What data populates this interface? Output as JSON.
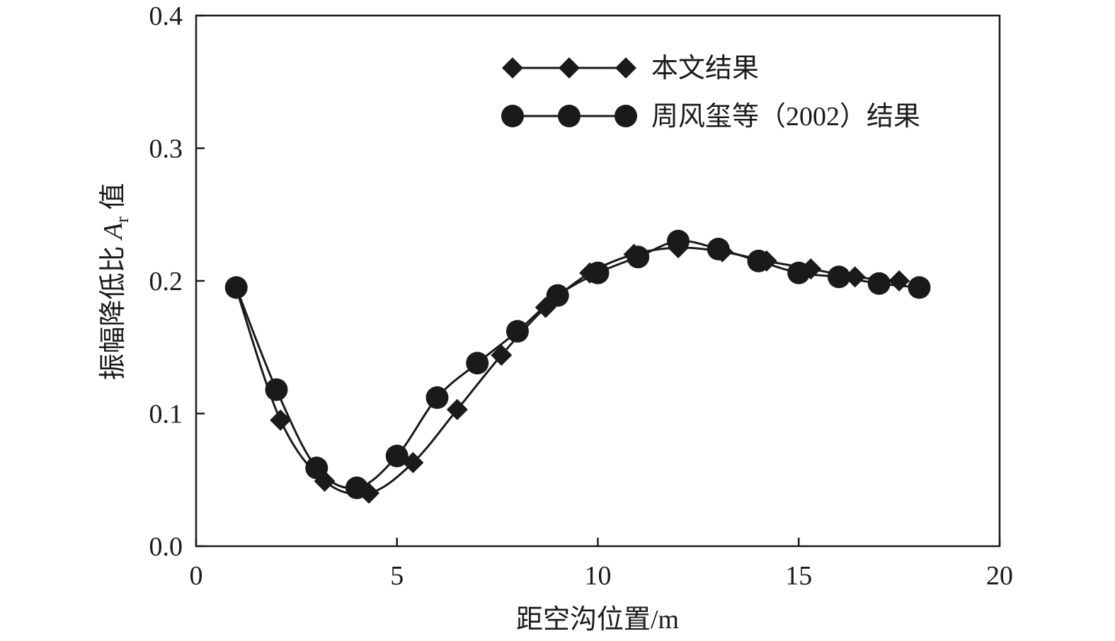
{
  "chart_data": {
    "type": "line",
    "title": "",
    "xlabel": "距空沟位置/m",
    "ylabel": "振幅降低比 Ar 值",
    "ylabel_parts": {
      "prefix": "振幅降低比 ",
      "symbol": "A",
      "subscript": "r",
      "suffix": " 值"
    },
    "xlim": [
      0,
      20
    ],
    "ylim": [
      0.0,
      0.4
    ],
    "xticks": [
      0,
      5,
      10,
      15,
      20
    ],
    "xtick_labels": [
      "0",
      "5",
      "10",
      "15",
      "20"
    ],
    "yticks": [
      0.0,
      0.1,
      0.2,
      0.3,
      0.4
    ],
    "ytick_labels": [
      "0.0",
      "0.1",
      "0.2",
      "0.3",
      "0.4"
    ],
    "grid": false,
    "legend_position": "top-right",
    "series": [
      {
        "name": "本文结果",
        "marker": "diamond",
        "color": "#1a1a1a",
        "x": [
          1.0,
          2.1,
          3.2,
          4.3,
          5.4,
          6.5,
          7.6,
          8.7,
          9.8,
          10.9,
          12.0,
          13.1,
          14.2,
          15.3,
          16.4,
          17.5
        ],
        "y": [
          0.194,
          0.095,
          0.049,
          0.04,
          0.063,
          0.103,
          0.144,
          0.18,
          0.206,
          0.22,
          0.225,
          0.222,
          0.215,
          0.209,
          0.203,
          0.2
        ]
      },
      {
        "name": "周风玺等（2002）结果",
        "marker": "circle",
        "color": "#1a1a1a",
        "x": [
          1,
          2,
          3,
          4,
          5,
          6,
          7,
          8,
          9,
          10,
          11,
          12,
          13,
          14,
          15,
          16,
          17,
          18
        ],
        "y": [
          0.195,
          0.118,
          0.059,
          0.044,
          0.068,
          0.112,
          0.138,
          0.162,
          0.189,
          0.206,
          0.218,
          0.23,
          0.224,
          0.215,
          0.206,
          0.203,
          0.198,
          0.195
        ]
      }
    ]
  }
}
